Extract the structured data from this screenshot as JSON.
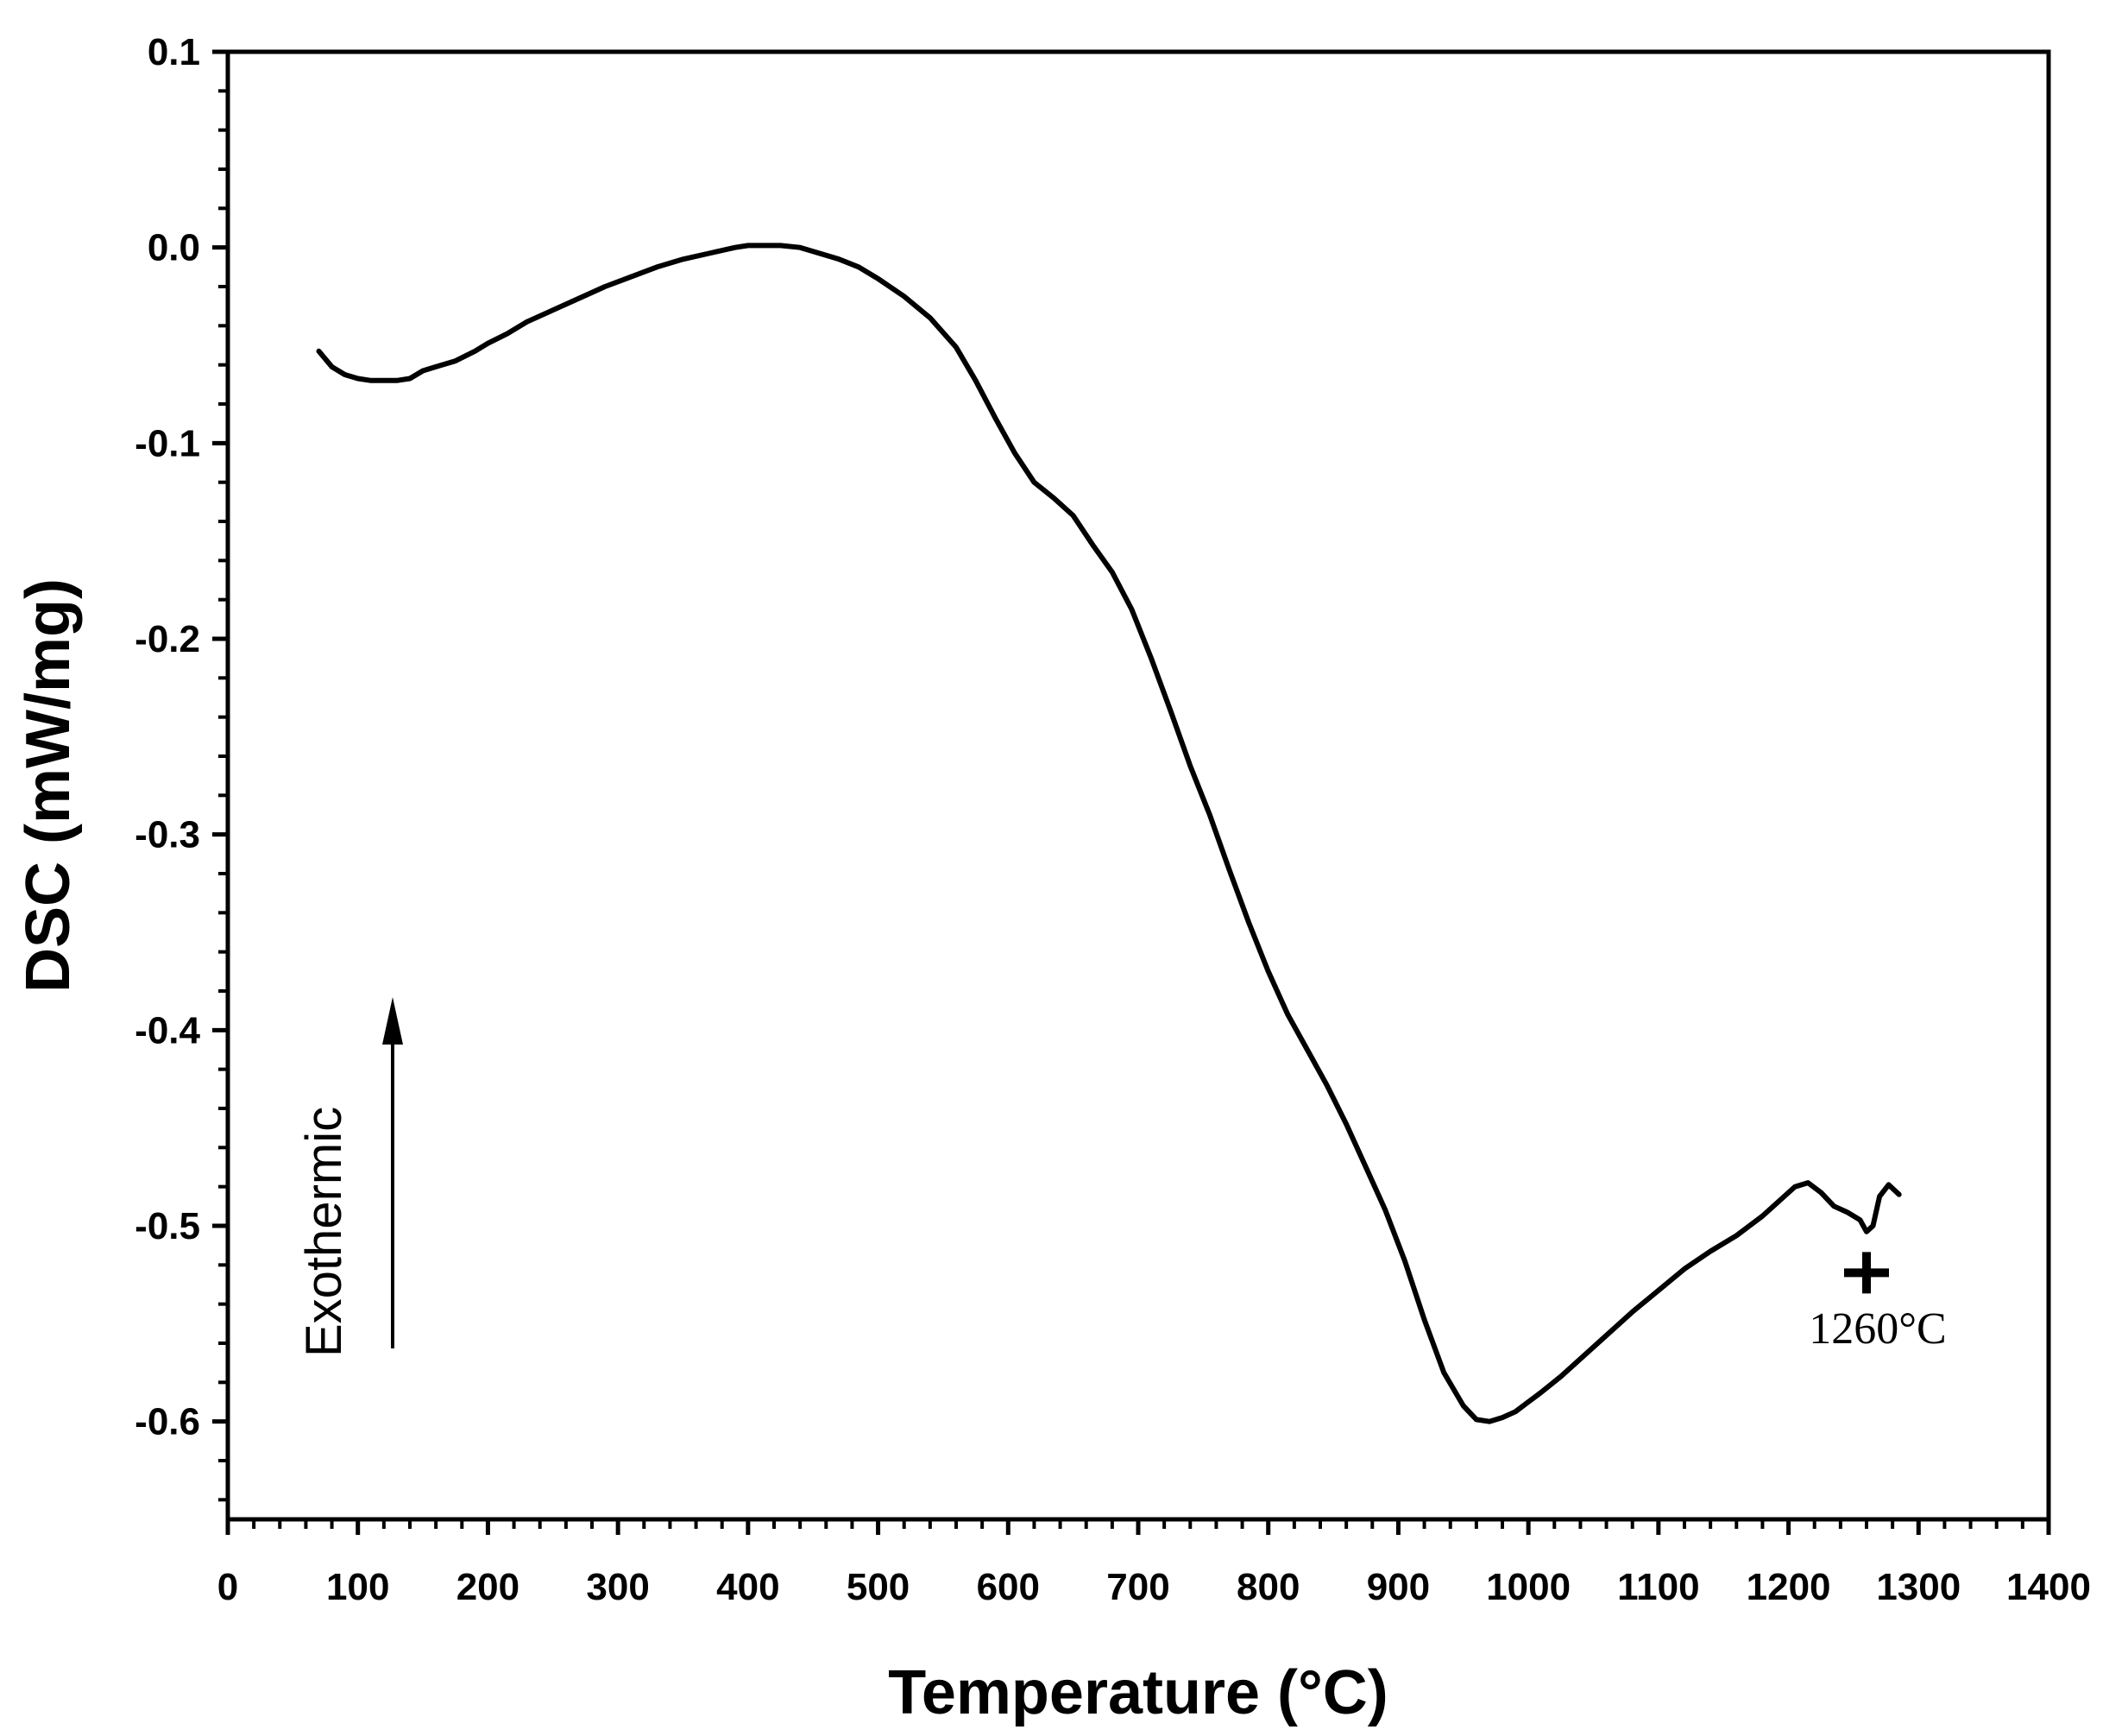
{
  "chart_data": {
    "type": "line",
    "title": "",
    "xlabel": "Temperature (°C)",
    "ylabel": "DSC (mW/mg)",
    "xlim": [
      0,
      1400
    ],
    "ylim": [
      -0.65,
      0.1
    ],
    "x_ticks": [
      0,
      100,
      200,
      300,
      400,
      500,
      600,
      700,
      800,
      900,
      1000,
      1100,
      1200,
      1300,
      1400
    ],
    "x_tick_labels": [
      "0",
      "100",
      "200",
      "300",
      "400",
      "500",
      "600",
      "700",
      "800",
      "900",
      "1000",
      "1100",
      "1200",
      "1300",
      "1400"
    ],
    "y_ticks": [
      0.1,
      0.0,
      -0.1,
      -0.2,
      -0.3,
      -0.4,
      -0.5,
      -0.6
    ],
    "y_tick_labels": [
      "0.1",
      "0.0",
      "-0.1",
      "-0.2",
      "-0.3",
      "-0.4",
      "-0.5",
      "-0.6"
    ],
    "grid": false,
    "legend": "none",
    "series": [
      {
        "name": "DSC",
        "x": [
          70,
          80,
          90,
          100,
          110,
          120,
          130,
          140,
          150,
          160,
          175,
          190,
          200,
          215,
          230,
          250,
          270,
          290,
          310,
          330,
          350,
          370,
          390,
          400,
          410,
          425,
          440,
          455,
          470,
          485,
          500,
          520,
          540,
          560,
          575,
          590,
          605,
          620,
          635,
          650,
          665,
          680,
          695,
          710,
          725,
          740,
          755,
          770,
          785,
          800,
          815,
          830,
          845,
          860,
          875,
          890,
          905,
          920,
          935,
          950,
          960,
          970,
          980,
          990,
          1000,
          1010,
          1025,
          1040,
          1060,
          1080,
          1100,
          1120,
          1140,
          1160,
          1180,
          1195,
          1205,
          1215,
          1225,
          1235,
          1245,
          1255,
          1260,
          1265,
          1270,
          1277,
          1285
        ],
        "y": [
          -0.053,
          -0.061,
          -0.065,
          -0.067,
          -0.068,
          -0.068,
          -0.068,
          -0.067,
          -0.063,
          -0.061,
          -0.058,
          -0.053,
          -0.049,
          -0.044,
          -0.038,
          -0.032,
          -0.026,
          -0.02,
          -0.015,
          -0.01,
          -0.006,
          -0.003,
          0.0,
          0.001,
          0.001,
          0.001,
          0.0,
          -0.003,
          -0.006,
          -0.01,
          -0.016,
          -0.025,
          -0.036,
          -0.051,
          -0.068,
          -0.087,
          -0.105,
          -0.12,
          -0.128,
          -0.137,
          -0.152,
          -0.166,
          -0.185,
          -0.21,
          -0.237,
          -0.265,
          -0.29,
          -0.318,
          -0.345,
          -0.37,
          -0.392,
          -0.41,
          -0.428,
          -0.448,
          -0.47,
          -0.492,
          -0.518,
          -0.548,
          -0.575,
          -0.592,
          -0.599,
          -0.6,
          -0.598,
          -0.595,
          -0.59,
          -0.585,
          -0.577,
          -0.568,
          -0.556,
          -0.544,
          -0.533,
          -0.522,
          -0.513,
          -0.505,
          -0.495,
          -0.486,
          -0.48,
          -0.478,
          -0.483,
          -0.49,
          -0.493,
          -0.497,
          -0.503,
          -0.5,
          -0.485,
          -0.479,
          -0.484
        ]
      }
    ],
    "annotations": {
      "exothermic_label": "Exothermic",
      "marker_label": "1260°C",
      "marker_x": 1260,
      "marker_y": -0.524
    }
  }
}
